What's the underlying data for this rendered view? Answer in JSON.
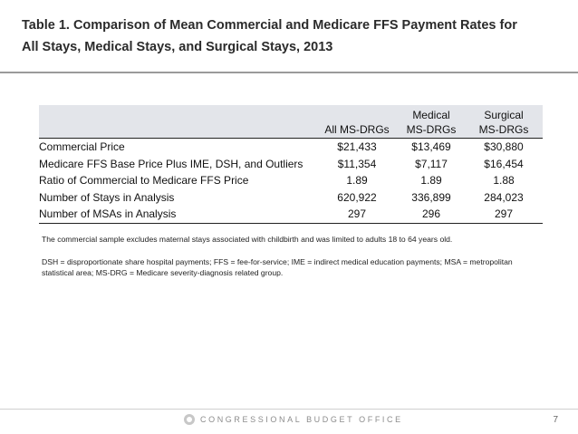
{
  "slide": {
    "title": "Table 1. Comparison of Mean Commercial and Medicare FFS Payment Rates for All Stays, Medical Stays, and Surgical Stays, 2013"
  },
  "table": {
    "headers": {
      "all": "All MS-DRGs",
      "medical_1": "Medical",
      "medical_2": "MS-DRGs",
      "surgical_1": "Surgical",
      "surgical_2": "MS-DRGs"
    },
    "rows": [
      {
        "label": "Commercial Price",
        "all": "$21,433",
        "medical": "$13,469",
        "surgical": "$30,880"
      },
      {
        "label": "Medicare FFS Base Price Plus IME, DSH, and Outliers",
        "all": "$11,354",
        "medical": "$7,117",
        "surgical": "$16,454"
      },
      {
        "label": "Ratio of Commercial to Medicare FFS Price",
        "all": "1.89",
        "medical": "1.89",
        "surgical": "1.88"
      },
      {
        "label": "Number of Stays in Analysis",
        "all": "620,922",
        "medical": "336,899",
        "surgical": "284,023"
      },
      {
        "label": "Number of MSAs in Analysis",
        "all": "297",
        "medical": "296",
        "surgical": "297"
      }
    ]
  },
  "notes": {
    "sample": "The commercial sample excludes maternal stays associated with childbirth and was limited to adults 18 to 64 years old.",
    "abbreviations": "DSH = disproportionate share hospital payments; FFS = fee-for-service; IME = indirect medical education payments; MSA = metropolitan statistical area; MS-DRG = Medicare severity-diagnosis related group."
  },
  "footer": {
    "organization": "CONGRESSIONAL BUDGET OFFICE",
    "page_number": "7"
  }
}
